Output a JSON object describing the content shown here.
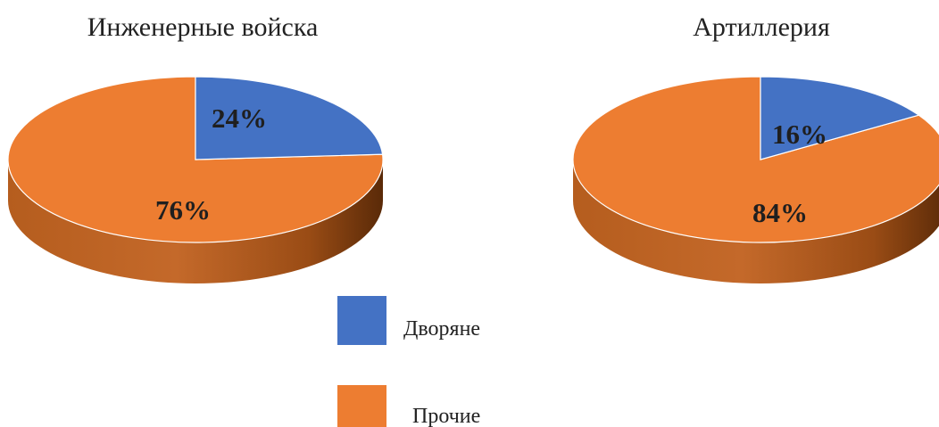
{
  "chart_data": [
    {
      "type": "pie",
      "title": "Инженерные войска",
      "categories": [
        "Дворяне",
        "Прочие"
      ],
      "values": [
        24,
        76
      ],
      "labels": [
        "24%",
        "76%"
      ]
    },
    {
      "type": "pie",
      "title": "Артиллерия",
      "categories": [
        "Дворяне",
        "Прочие"
      ],
      "values": [
        16,
        84
      ],
      "labels": [
        "16%",
        "84%"
      ]
    }
  ],
  "legend": [
    {
      "label": "Дворяне",
      "color": "#4472c4"
    },
    {
      "label": "Прочие",
      "color": "#ed7d31"
    }
  ],
  "colors": {
    "nobles_top": "#4472c4",
    "nobles_side": "#2f5597",
    "others_top": "#ed7d31",
    "others_side": "#a5531a"
  }
}
